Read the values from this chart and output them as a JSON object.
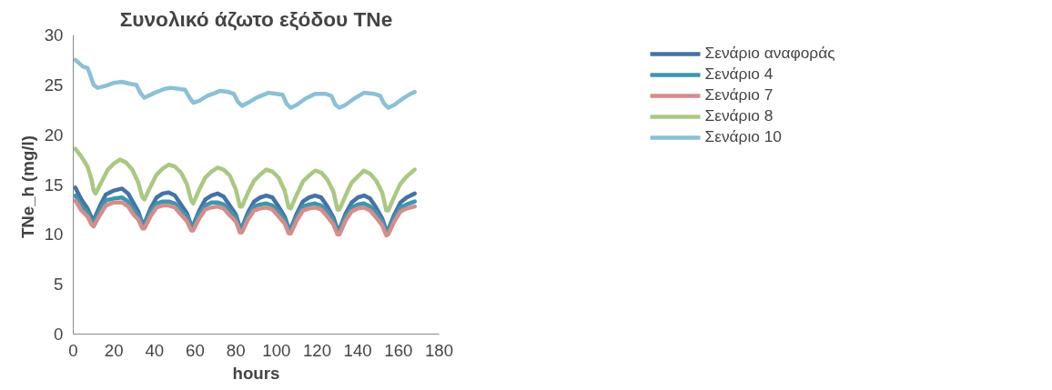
{
  "chart_data": {
    "type": "line",
    "title": "Συνολικό άζωτο εξόδου TNe",
    "xlabel": "hours",
    "ylabel": "TNe_h  (mg/l)",
    "xlim": [
      0,
      180
    ],
    "xticks": [
      0,
      20,
      40,
      60,
      80,
      100,
      120,
      140,
      160,
      180
    ],
    "ylim": [
      0,
      30
    ],
    "yticks": [
      0,
      5,
      10,
      15,
      20,
      25,
      30
    ],
    "grid": false,
    "legend": "top right",
    "marker": "none",
    "line_style": "solid",
    "x": [
      1,
      4,
      7,
      9,
      10,
      13,
      16,
      20,
      24,
      27,
      30,
      32,
      34,
      35,
      38,
      41,
      44,
      47,
      50,
      53,
      56,
      58,
      59,
      62,
      65,
      68,
      71,
      74,
      77,
      80,
      82,
      83,
      86,
      89,
      92,
      95,
      98,
      101,
      104,
      106,
      107,
      110,
      113,
      116,
      119,
      122,
      125,
      128,
      130,
      131,
      134,
      137,
      140,
      143,
      146,
      149,
      152,
      154,
      155,
      158,
      161,
      164,
      168
    ],
    "series": [
      {
        "name": "Σενάριο αναφοράς",
        "color": "#4572a7",
        "values": [
          14.7,
          13.5,
          12.6,
          11.7,
          11.4,
          12.8,
          14.0,
          14.4,
          14.6,
          14.1,
          13.0,
          12.3,
          11.1,
          11.1,
          12.6,
          13.7,
          14.1,
          14.2,
          13.9,
          13.0,
          12.1,
          10.9,
          10.9,
          12.4,
          13.5,
          13.9,
          14.1,
          13.8,
          12.9,
          12.0,
          10.7,
          10.7,
          12.2,
          13.3,
          13.7,
          13.9,
          13.7,
          12.8,
          11.8,
          10.6,
          10.6,
          12.1,
          13.3,
          13.7,
          13.9,
          13.7,
          12.8,
          11.7,
          10.5,
          10.5,
          12.1,
          13.2,
          13.7,
          13.9,
          13.6,
          12.7,
          11.6,
          10.4,
          10.5,
          12.0,
          13.2,
          13.7,
          14.1
        ]
      },
      {
        "name": "Σενάριο 4",
        "color": "#3d96ae",
        "values": [
          13.9,
          12.9,
          12.2,
          11.4,
          11.2,
          12.4,
          13.4,
          13.6,
          13.7,
          13.3,
          12.4,
          11.9,
          11.0,
          11.0,
          12.3,
          13.1,
          13.3,
          13.3,
          13.1,
          12.4,
          11.8,
          10.8,
          10.8,
          12.1,
          12.9,
          13.2,
          13.2,
          13.0,
          12.4,
          11.7,
          10.6,
          10.6,
          11.9,
          12.8,
          13.0,
          13.1,
          12.9,
          12.3,
          11.5,
          10.5,
          10.5,
          11.8,
          12.8,
          13.0,
          13.1,
          12.9,
          12.3,
          11.4,
          10.4,
          10.4,
          11.8,
          12.7,
          13.0,
          13.1,
          12.8,
          12.2,
          11.3,
          10.3,
          10.4,
          11.7,
          12.7,
          13.0,
          13.3
        ]
      },
      {
        "name": "Σενάριο 7",
        "color": "#d68c8b",
        "values": [
          13.4,
          12.4,
          11.8,
          11.0,
          10.8,
          11.9,
          12.9,
          13.2,
          13.2,
          12.8,
          11.9,
          11.5,
          10.6,
          10.6,
          11.8,
          12.7,
          12.9,
          12.9,
          12.7,
          12.0,
          11.3,
          10.4,
          10.4,
          11.6,
          12.5,
          12.7,
          12.8,
          12.6,
          11.9,
          11.3,
          10.2,
          10.2,
          11.5,
          12.4,
          12.6,
          12.7,
          12.5,
          11.8,
          11.1,
          10.1,
          10.1,
          11.4,
          12.4,
          12.6,
          12.7,
          12.5,
          11.8,
          11.0,
          10.0,
          10.0,
          11.4,
          12.3,
          12.6,
          12.7,
          12.4,
          11.7,
          10.9,
          9.9,
          10.0,
          11.3,
          12.3,
          12.6,
          12.8
        ]
      },
      {
        "name": "Σενάριο 8",
        "color": "#aac882",
        "x": [
          1,
          4,
          7,
          9,
          10,
          11,
          14,
          17,
          20,
          23,
          26,
          29,
          32,
          34,
          35,
          38,
          41,
          44,
          47,
          50,
          53,
          56,
          58,
          59,
          62,
          65,
          68,
          71,
          74,
          77,
          80,
          82,
          83,
          86,
          89,
          92,
          95,
          98,
          101,
          104,
          106,
          107,
          110,
          113,
          116,
          119,
          122,
          125,
          128,
          130,
          131,
          134,
          137,
          140,
          143,
          146,
          149,
          152,
          154,
          155,
          158,
          161,
          164,
          168
        ],
        "values": [
          18.6,
          17.8,
          16.8,
          15.5,
          14.4,
          14.1,
          15.3,
          16.5,
          17.1,
          17.5,
          17.2,
          16.5,
          15.2,
          13.7,
          13.5,
          14.8,
          16.0,
          16.6,
          17.0,
          16.8,
          16.2,
          15.0,
          13.4,
          13.1,
          14.5,
          15.7,
          16.3,
          16.7,
          16.5,
          15.9,
          14.5,
          12.8,
          12.8,
          14.2,
          15.4,
          16.0,
          16.5,
          16.3,
          15.7,
          14.4,
          12.7,
          12.6,
          14.0,
          15.3,
          15.9,
          16.4,
          16.2,
          15.5,
          14.3,
          12.5,
          12.5,
          13.9,
          15.2,
          15.8,
          16.4,
          16.1,
          15.4,
          14.2,
          12.4,
          12.4,
          13.8,
          15.1,
          15.8,
          16.5
        ]
      },
      {
        "name": "Σενάριο 10",
        "color": "#8cc0d6",
        "x": [
          1,
          5,
          7,
          8,
          10,
          12,
          16,
          20,
          24,
          28,
          31,
          33,
          35,
          40,
          45,
          48,
          52,
          55,
          57,
          59,
          62,
          66,
          70,
          72,
          76,
          79,
          81,
          83,
          86,
          90,
          96,
          100,
          103,
          105,
          107,
          110,
          114,
          119,
          124,
          127,
          129,
          131,
          134,
          138,
          143,
          148,
          151,
          153,
          155,
          158,
          162,
          166,
          168
        ],
        "values": [
          27.5,
          26.8,
          26.7,
          26.2,
          25.0,
          24.7,
          24.9,
          25.2,
          25.3,
          25.1,
          25.0,
          24.2,
          23.7,
          24.2,
          24.6,
          24.7,
          24.6,
          24.5,
          23.8,
          23.2,
          23.4,
          23.9,
          24.2,
          24.4,
          24.3,
          24.1,
          23.3,
          22.9,
          23.2,
          23.7,
          24.2,
          24.1,
          24.0,
          23.1,
          22.7,
          23.0,
          23.6,
          24.1,
          24.1,
          23.9,
          23.0,
          22.7,
          23.0,
          23.6,
          24.2,
          24.1,
          23.9,
          23.1,
          22.7,
          23.0,
          23.6,
          24.1,
          24.3
        ]
      }
    ]
  }
}
